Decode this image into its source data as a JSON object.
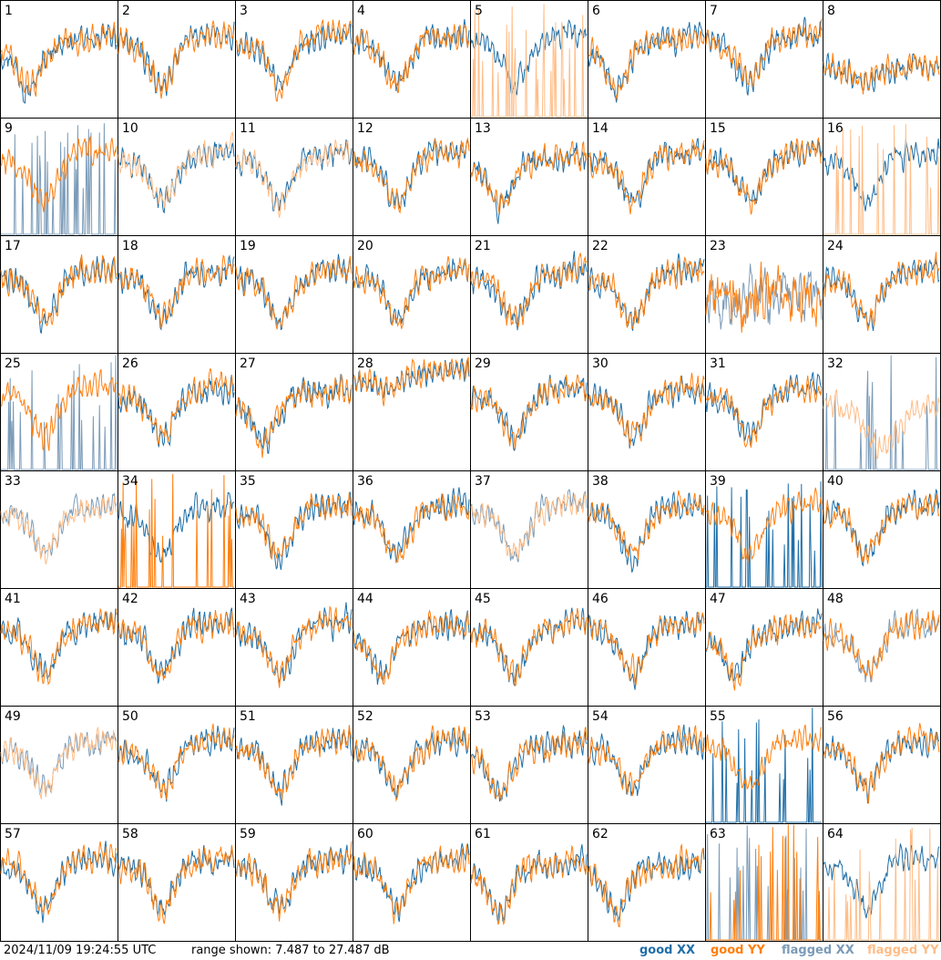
{
  "chart_data": {
    "type": "line",
    "layout": "8x8 small multiples",
    "panels": [
      {
        "id": "1",
        "style": {
          "xx": "good",
          "yy": "good"
        },
        "profile": "bowl"
      },
      {
        "id": "2",
        "style": {
          "xx": "good",
          "yy": "good"
        },
        "profile": "dip"
      },
      {
        "id": "3",
        "style": {
          "xx": "good",
          "yy": "good"
        },
        "profile": "dip"
      },
      {
        "id": "4",
        "style": {
          "xx": "good",
          "yy": "good"
        },
        "profile": "dip"
      },
      {
        "id": "5",
        "style": {
          "xx": "good",
          "yy": "flagged-spikes"
        },
        "profile": "dip"
      },
      {
        "id": "6",
        "style": {
          "xx": "good",
          "yy": "good"
        },
        "profile": "bowl"
      },
      {
        "id": "7",
        "style": {
          "xx": "good",
          "yy": "good"
        },
        "profile": "dip"
      },
      {
        "id": "8",
        "style": {
          "xx": "good",
          "yy": "good"
        },
        "profile": "flat"
      },
      {
        "id": "9",
        "style": {
          "xx": "flagged-spikes",
          "yy": "good"
        },
        "profile": "dip"
      },
      {
        "id": "10",
        "style": {
          "xx": "good",
          "yy": "flagged"
        },
        "profile": "dip"
      },
      {
        "id": "11",
        "style": {
          "xx": "good",
          "yy": "flagged"
        },
        "profile": "dip"
      },
      {
        "id": "12",
        "style": {
          "xx": "good",
          "yy": "good"
        },
        "profile": "dip"
      },
      {
        "id": "13",
        "style": {
          "xx": "good",
          "yy": "good"
        },
        "profile": "bowl"
      },
      {
        "id": "14",
        "style": {
          "xx": "good",
          "yy": "good"
        },
        "profile": "dip"
      },
      {
        "id": "15",
        "style": {
          "xx": "good",
          "yy": "good"
        },
        "profile": "dip"
      },
      {
        "id": "16",
        "style": {
          "xx": "good",
          "yy": "flagged-spikes"
        },
        "profile": "dip"
      },
      {
        "id": "17",
        "style": {
          "xx": "good",
          "yy": "good"
        },
        "profile": "dip"
      },
      {
        "id": "18",
        "style": {
          "xx": "good",
          "yy": "good"
        },
        "profile": "dip"
      },
      {
        "id": "19",
        "style": {
          "xx": "good",
          "yy": "good"
        },
        "profile": "dip"
      },
      {
        "id": "20",
        "style": {
          "xx": "good",
          "yy": "good"
        },
        "profile": "dip"
      },
      {
        "id": "21",
        "style": {
          "xx": "good",
          "yy": "good"
        },
        "profile": "dip"
      },
      {
        "id": "22",
        "style": {
          "xx": "good",
          "yy": "good"
        },
        "profile": "dip"
      },
      {
        "id": "23",
        "style": {
          "xx": "flagged",
          "yy": "good"
        },
        "profile": "noisy"
      },
      {
        "id": "24",
        "style": {
          "xx": "good",
          "yy": "good"
        },
        "profile": "dip"
      },
      {
        "id": "25",
        "style": {
          "xx": "flagged-spikes",
          "yy": "good"
        },
        "profile": "dip"
      },
      {
        "id": "26",
        "style": {
          "xx": "good",
          "yy": "good"
        },
        "profile": "dip"
      },
      {
        "id": "27",
        "style": {
          "xx": "good",
          "yy": "good"
        },
        "profile": "bowl"
      },
      {
        "id": "28",
        "style": {
          "xx": "good",
          "yy": "good"
        },
        "profile": "smooth"
      },
      {
        "id": "29",
        "style": {
          "xx": "good",
          "yy": "good"
        },
        "profile": "dip"
      },
      {
        "id": "30",
        "style": {
          "xx": "good",
          "yy": "good"
        },
        "profile": "dip"
      },
      {
        "id": "31",
        "style": {
          "xx": "good",
          "yy": "good"
        },
        "profile": "dip"
      },
      {
        "id": "32",
        "style": {
          "xx": "flagged-spikes",
          "yy": "flagged"
        },
        "profile": "wide"
      },
      {
        "id": "33",
        "style": {
          "xx": "flagged",
          "yy": "flagged"
        },
        "profile": "dip"
      },
      {
        "id": "34",
        "style": {
          "xx": "good",
          "yy": "good-spikes"
        },
        "profile": "dip"
      },
      {
        "id": "35",
        "style": {
          "xx": "good",
          "yy": "good"
        },
        "profile": "dip"
      },
      {
        "id": "36",
        "style": {
          "xx": "good",
          "yy": "good"
        },
        "profile": "dip"
      },
      {
        "id": "37",
        "style": {
          "xx": "flagged",
          "yy": "flagged"
        },
        "profile": "dip"
      },
      {
        "id": "38",
        "style": {
          "xx": "good",
          "yy": "good"
        },
        "profile": "dip"
      },
      {
        "id": "39",
        "style": {
          "xx": "good-spikes",
          "yy": "good"
        },
        "profile": "dip"
      },
      {
        "id": "40",
        "style": {
          "xx": "good",
          "yy": "good"
        },
        "profile": "dip"
      },
      {
        "id": "41",
        "style": {
          "xx": "good",
          "yy": "good"
        },
        "profile": "dip"
      },
      {
        "id": "42",
        "style": {
          "xx": "good",
          "yy": "good"
        },
        "profile": "dip"
      },
      {
        "id": "43",
        "style": {
          "xx": "good",
          "yy": "good"
        },
        "profile": "dip"
      },
      {
        "id": "44",
        "style": {
          "xx": "good",
          "yy": "good"
        },
        "profile": "bowl"
      },
      {
        "id": "45",
        "style": {
          "xx": "good",
          "yy": "good"
        },
        "profile": "dip"
      },
      {
        "id": "46",
        "style": {
          "xx": "good",
          "yy": "good"
        },
        "profile": "dip"
      },
      {
        "id": "47",
        "style": {
          "xx": "good",
          "yy": "good"
        },
        "profile": "bowl"
      },
      {
        "id": "48",
        "style": {
          "xx": "flagged",
          "yy": "good"
        },
        "profile": "dip"
      },
      {
        "id": "49",
        "style": {
          "xx": "flagged",
          "yy": "flagged"
        },
        "profile": "dip"
      },
      {
        "id": "50",
        "style": {
          "xx": "good",
          "yy": "good"
        },
        "profile": "dip"
      },
      {
        "id": "51",
        "style": {
          "xx": "good",
          "yy": "good"
        },
        "profile": "dip"
      },
      {
        "id": "52",
        "style": {
          "xx": "good",
          "yy": "good"
        },
        "profile": "dip"
      },
      {
        "id": "53",
        "style": {
          "xx": "good",
          "yy": "good"
        },
        "profile": "bowl"
      },
      {
        "id": "54",
        "style": {
          "xx": "good",
          "yy": "good"
        },
        "profile": "dip"
      },
      {
        "id": "55",
        "style": {
          "xx": "good-spikes",
          "yy": "good"
        },
        "profile": "dip"
      },
      {
        "id": "56",
        "style": {
          "xx": "good",
          "yy": "good"
        },
        "profile": "dip"
      },
      {
        "id": "57",
        "style": {
          "xx": "good",
          "yy": "good"
        },
        "profile": "dip"
      },
      {
        "id": "58",
        "style": {
          "xx": "good",
          "yy": "good"
        },
        "profile": "dip"
      },
      {
        "id": "59",
        "style": {
          "xx": "good",
          "yy": "good"
        },
        "profile": "dip"
      },
      {
        "id": "60",
        "style": {
          "xx": "good",
          "yy": "good"
        },
        "profile": "dip"
      },
      {
        "id": "61",
        "style": {
          "xx": "good",
          "yy": "good"
        },
        "profile": "bowl"
      },
      {
        "id": "62",
        "style": {
          "xx": "good",
          "yy": "good"
        },
        "profile": "bowl"
      },
      {
        "id": "63",
        "style": {
          "xx": "flagged-spikes",
          "yy": "good-spikes"
        },
        "profile": "spikes"
      },
      {
        "id": "64",
        "style": {
          "xx": "good",
          "yy": "flagged-spikes"
        },
        "profile": "dip"
      }
    ],
    "range_db": [
      7.487,
      27.487
    ],
    "legend": [
      {
        "label": "good XX",
        "color": "#1f6fa8"
      },
      {
        "label": "good YY",
        "color": "#ff7f0e"
      },
      {
        "label": "flagged XX",
        "color": "#7b9bb8"
      },
      {
        "label": "flagged YY",
        "color": "#ffbd87"
      }
    ]
  },
  "footer": {
    "timestamp": "2024/11/09 19:24:55 UTC",
    "range_text": "range shown: 7.487 to 27.487 dB"
  },
  "colors": {
    "good_xx": "#1f6fa8",
    "good_yy": "#ff7f0e",
    "flagged_xx": "#7b9bb8",
    "flagged_yy": "#ffbd87"
  }
}
